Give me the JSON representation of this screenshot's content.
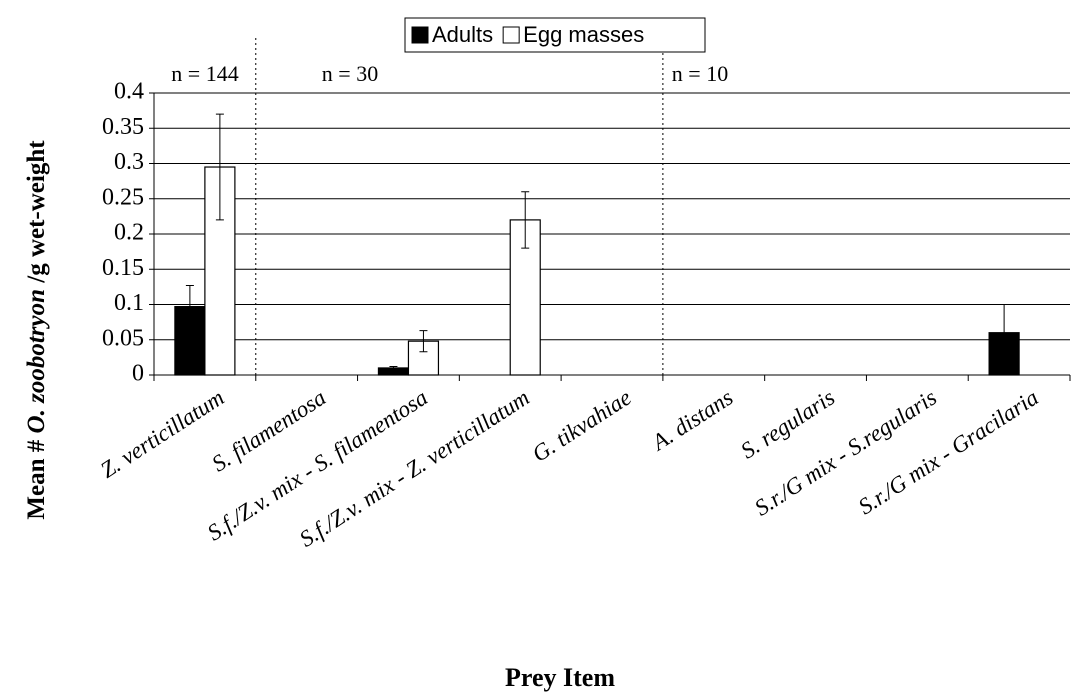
{
  "chart_data": {
    "type": "bar",
    "y_label": [
      "Mean # ",
      "O. zoobotryon",
      " /g wet-weight"
    ],
    "x_label": "Prey Item",
    "categories": [
      "Z. verticillatum",
      "S. filamentosa",
      "S.f./Z.v. mix - S. filamentosa",
      "S.f./Z.v. mix - Z. verticillatum",
      "G. tikvahiae",
      "A. distans",
      "S. regularis",
      "S.r./G mix - S.regularis",
      "S.r./G mix - Gracilaria"
    ],
    "series": [
      {
        "name": "Adults",
        "color": "#000000",
        "values": [
          0.097,
          0,
          0.01,
          0,
          0,
          0,
          0,
          0,
          0.06
        ],
        "errors": [
          0.03,
          0,
          0.002,
          0,
          0,
          0,
          0,
          0,
          0.04
        ]
      },
      {
        "name": "Egg masses",
        "color": "#ffffff",
        "values": [
          0.295,
          0,
          0.048,
          0.22,
          0,
          0,
          0,
          0,
          0
        ],
        "errors": [
          0.075,
          0,
          0.015,
          0.04,
          0,
          0,
          0,
          0,
          0
        ]
      }
    ],
    "annotations": [
      "n = 144",
      "n = 30",
      "n = 10"
    ],
    "ylim": [
      0,
      0.4
    ],
    "yticks": [
      0,
      0.05,
      0.1,
      0.15,
      0.2,
      0.25,
      0.3,
      0.35,
      0.4
    ],
    "grid": true,
    "legend": "top"
  }
}
